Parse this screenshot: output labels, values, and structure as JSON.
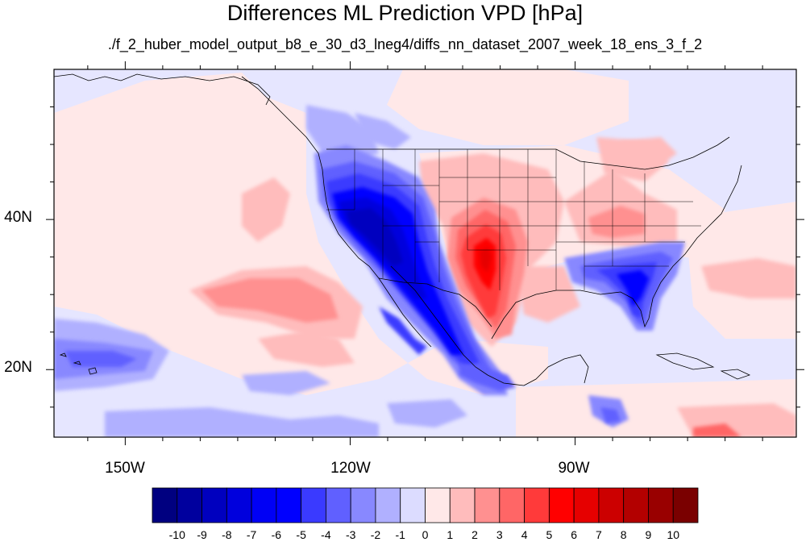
{
  "title": "Differences ML Prediction VPD [hPa]",
  "subtitle": "./f_2_huber_model_output_b8_e_30_d3_lneg4/diffs_nn_dataset_2007_week_18_ens_3_f_2",
  "map": {
    "lat_labels": [
      "40N",
      "20N"
    ],
    "lon_labels": [
      "150W",
      "120W",
      "90W"
    ],
    "lat_values": [
      40,
      20
    ],
    "lon_values": [
      -150,
      -120,
      -90
    ],
    "extent": {
      "lon_min": -159.5,
      "lon_max": -60.5,
      "lat_min": 11,
      "lat_max": 60
    }
  },
  "colorbar": {
    "labels": [
      "-10",
      "-9",
      "-8",
      "-7",
      "-6",
      "-5",
      "-4",
      "-3",
      "-2",
      "-1",
      "0",
      "1",
      "2",
      "3",
      "4",
      "5",
      "6",
      "7",
      "8",
      "9",
      "10"
    ],
    "colors": [
      "#000080",
      "#00009e",
      "#0000bf",
      "#0000dd",
      "#0000f5",
      "#0000ff",
      "#3a3aff",
      "#6060ff",
      "#8888ff",
      "#b0b0ff",
      "#dcdcff",
      "#ffe8e8",
      "#ffbcbc",
      "#ff9090",
      "#ff6666",
      "#ff3a3a",
      "#ff0000",
      "#e60000",
      "#cc0000",
      "#b30000",
      "#990000",
      "#7a0000"
    ]
  },
  "colors": {
    "neutral_neg": "#e6e6ff",
    "neutral_pos": "#ffe8e8",
    "coast": "#000000",
    "frame": "#000000"
  }
}
